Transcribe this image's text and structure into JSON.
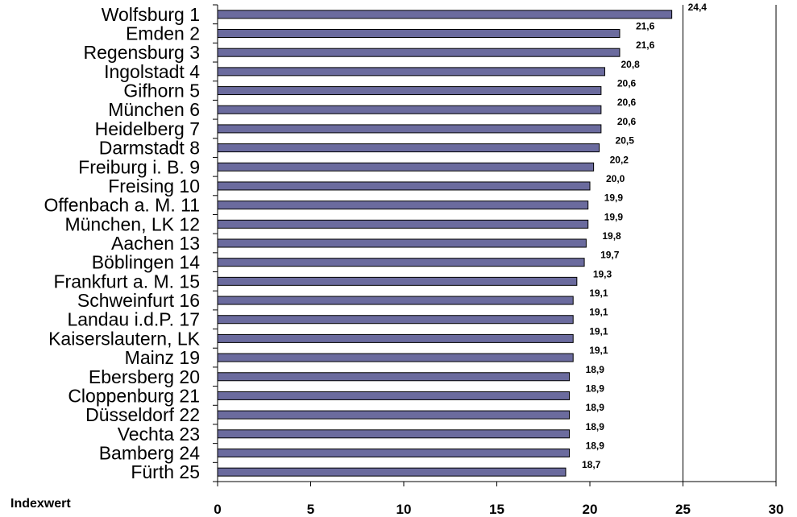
{
  "chart_data": {
    "type": "bar",
    "orientation": "horizontal",
    "xlabel": "Indexwert",
    "xlim": [
      0,
      30
    ],
    "xticks": [
      0,
      5,
      10,
      15,
      20,
      25,
      30
    ],
    "xtick_labels": [
      "0",
      "5",
      "10",
      "15",
      "20",
      "25",
      "30"
    ],
    "grid": "vertical line at 25 only",
    "bar_color": "#6b6b9e",
    "categories": [
      "Wolfsburg 1",
      "Emden 2",
      "Regensburg 3",
      "Ingolstadt 4",
      "Gifhorn 5",
      "München 6",
      "Heidelberg 7",
      "Darmstadt 8",
      "Freiburg i. B. 9",
      "Freising 10",
      "Offenbach a. M. 11",
      "München, LK 12",
      "Aachen 13",
      "Böblingen 14",
      "Frankfurt a. M. 15",
      "Schweinfurt 16",
      "Landau i.d.P. 17",
      "Kaiserslautern, LK",
      "Mainz 19",
      "Ebersberg 20",
      "Cloppenburg 21",
      "Düsseldorf 22",
      "Vechta 23",
      "Bamberg 24",
      "Fürth 25"
    ],
    "values": [
      24.4,
      21.6,
      21.6,
      20.8,
      20.6,
      20.6,
      20.6,
      20.5,
      20.2,
      20.0,
      19.9,
      19.9,
      19.8,
      19.7,
      19.3,
      19.1,
      19.1,
      19.1,
      19.1,
      18.9,
      18.9,
      18.9,
      18.9,
      18.9,
      18.7
    ],
    "value_labels": [
      "24,4",
      "21,6",
      "21,6",
      "20,8",
      "20,6",
      "20,6",
      "20,6",
      "20,5",
      "20,2",
      "20,0",
      "19,9",
      "19,9",
      "19,8",
      "19,7",
      "19,3",
      "19,1",
      "19,1",
      "19,1",
      "19,1",
      "18,9",
      "18,9",
      "18,9",
      "18,9",
      "18,9",
      "18,7"
    ]
  }
}
